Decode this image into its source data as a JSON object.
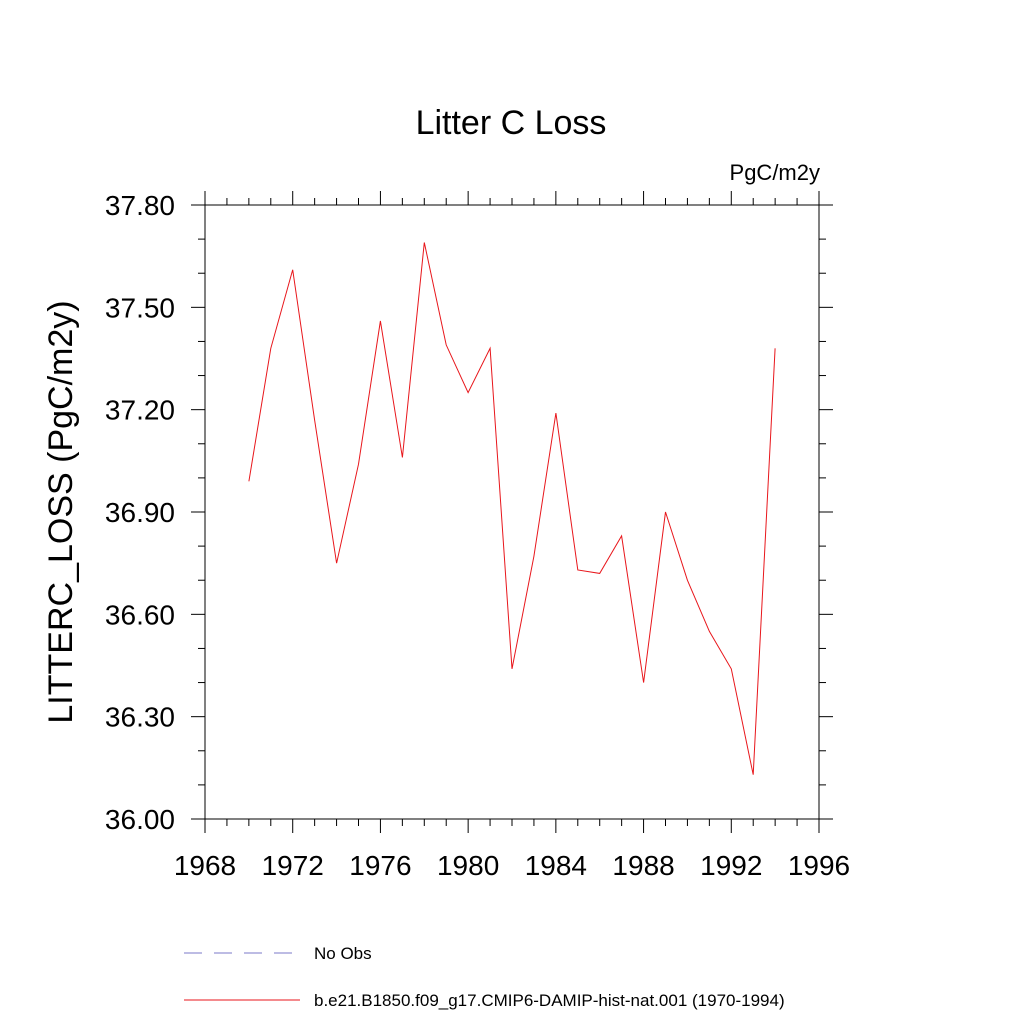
{
  "chart_data": {
    "type": "line",
    "title": "Litter C Loss",
    "units_label": "PgC/m2y",
    "ylabel": "LITTERC_LOSS  (PgC/m2y)",
    "xlabel": "",
    "xlim": [
      1968,
      1996
    ],
    "ylim": [
      36.0,
      37.8
    ],
    "xticks": [
      1968,
      1972,
      1976,
      1980,
      1984,
      1988,
      1992,
      1996
    ],
    "xtick_labels": [
      "1968",
      "1972",
      "1976",
      "1980",
      "1984",
      "1988",
      "1992",
      "1996"
    ],
    "yticks": [
      36.0,
      36.3,
      36.6,
      36.9,
      37.2,
      37.5,
      37.8
    ],
    "ytick_labels": [
      "36.00",
      "36.30",
      "36.60",
      "36.90",
      "37.20",
      "37.50",
      "37.80"
    ],
    "grid": false,
    "legend_position": "bottom",
    "legend": [
      {
        "label": "No Obs",
        "color": "#7b79c9",
        "dash": "dashed"
      },
      {
        "label": "b.e21.B1850.f09_g17.CMIP6-DAMIP-hist-nat.001 (1970-1994)",
        "color": "#e8161b",
        "dash": "solid"
      }
    ],
    "series": [
      {
        "name": "b.e21.B1850.f09_g17.CMIP6-DAMIP-hist-nat.001 (1970-1994)",
        "color": "#e8161b",
        "x": [
          1970,
          1971,
          1972,
          1973,
          1974,
          1975,
          1976,
          1977,
          1978,
          1979,
          1980,
          1981,
          1982,
          1983,
          1984,
          1985,
          1986,
          1987,
          1988,
          1989,
          1990,
          1991,
          1992,
          1993,
          1994
        ],
        "y": [
          36.99,
          37.38,
          37.61,
          37.17,
          36.75,
          37.04,
          37.46,
          37.06,
          37.69,
          37.39,
          37.25,
          37.38,
          36.44,
          36.77,
          37.19,
          36.73,
          36.72,
          36.83,
          36.4,
          36.9,
          36.7,
          36.55,
          36.44,
          36.13,
          37.38
        ]
      }
    ]
  }
}
